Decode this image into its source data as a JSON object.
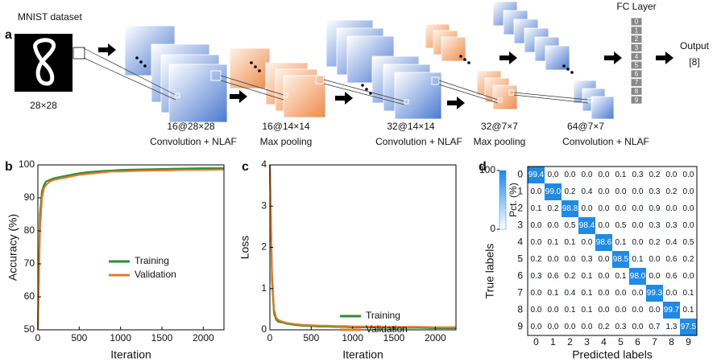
{
  "panel_labels": [
    "a",
    "b",
    "c",
    "d"
  ],
  "diagram": {
    "input_title": "MNIST dataset",
    "input_size": "28×28",
    "layers": [
      {
        "size": "16@28×28",
        "op": "Convolution + NLAF"
      },
      {
        "size": "16@14×14",
        "op": "Max pooling"
      },
      {
        "size": "32@14×14",
        "op": "Convolution + NLAF"
      },
      {
        "size": "32@7×7",
        "op": "Max pooling"
      },
      {
        "size": "64@7×7",
        "op": "Convolution + NLAF"
      }
    ],
    "fc_title": "FC Layer",
    "fc_nodes": [
      "0",
      "1",
      "2",
      "3",
      "4",
      "5",
      "6",
      "7",
      "8",
      "9"
    ],
    "output_title": "Output",
    "output_value": "[8]"
  },
  "chart_data": [
    {
      "type": "line",
      "xlabel": "Iteration",
      "ylabel": "Accuracy (%)",
      "x": [
        0,
        25,
        50,
        75,
        100,
        150,
        200,
        300,
        400,
        500,
        600,
        700,
        800,
        900,
        1000,
        1200,
        1400,
        1600,
        1800,
        2000,
        2250
      ],
      "series": [
        {
          "name": "Training",
          "color": "#2e8b3a",
          "values": [
            50,
            85,
            92,
            94,
            95,
            95.5,
            96,
            96.5,
            97,
            97.5,
            97.8,
            98,
            98.2,
            98.3,
            98.5,
            98.6,
            98.7,
            98.8,
            98.9,
            99,
            99
          ]
        },
        {
          "name": "Validation",
          "color": "#e07b2a",
          "values": [
            50,
            80,
            90,
            93,
            94,
            95,
            95.5,
            96,
            96.5,
            97,
            97.3,
            97.5,
            97.8,
            98,
            98,
            98.2,
            98.3,
            98.4,
            98.5,
            98.5,
            98.6
          ]
        }
      ],
      "xlim": [
        0,
        2250
      ],
      "xticks": [
        0,
        500,
        1000,
        1500,
        2000
      ],
      "ylim": [
        50,
        100
      ],
      "yticks": [
        50,
        60,
        70,
        80,
        90,
        100
      ]
    },
    {
      "type": "line",
      "xlabel": "Iteration",
      "ylabel": "Loss",
      "x": [
        0,
        25,
        50,
        75,
        100,
        150,
        200,
        300,
        400,
        500,
        600,
        700,
        800,
        900,
        1000,
        1200,
        1400,
        1600,
        1800,
        2000,
        2250
      ],
      "series": [
        {
          "name": "Training",
          "color": "#2e8b3a",
          "values": [
            4,
            1.2,
            0.4,
            0.25,
            0.2,
            0.18,
            0.15,
            0.12,
            0.1,
            0.09,
            0.08,
            0.08,
            0.07,
            0.07,
            0.06,
            0.06,
            0.05,
            0.05,
            0.05,
            0.04,
            0.04
          ]
        },
        {
          "name": "Validation",
          "color": "#e07b2a",
          "values": [
            4,
            1.4,
            0.5,
            0.3,
            0.24,
            0.2,
            0.17,
            0.14,
            0.12,
            0.11,
            0.1,
            0.1,
            0.09,
            0.09,
            0.08,
            0.08,
            0.07,
            0.07,
            0.07,
            0.06,
            0.06
          ]
        }
      ],
      "xlim": [
        0,
        2250
      ],
      "xticks": [
        0,
        500,
        1000,
        1500,
        2000
      ],
      "ylim": [
        0,
        4
      ],
      "yticks": [
        0,
        1,
        2,
        3,
        4
      ]
    },
    {
      "type": "heatmap",
      "xlabel": "Predicted labels",
      "ylabel": "True labels",
      "colorbar_label": "Pct. (%)",
      "clim": [
        0,
        100
      ],
      "cticks": [
        0,
        100
      ],
      "color": "#1e88e5",
      "categories": [
        "0",
        "1",
        "2",
        "3",
        "4",
        "5",
        "6",
        "7",
        "8",
        "9"
      ],
      "values": [
        [
          99.4,
          0,
          0,
          0,
          0,
          0.1,
          0.3,
          0.2,
          0,
          0
        ],
        [
          0,
          99.0,
          0.2,
          0.4,
          0,
          0,
          0,
          0.3,
          0.2,
          0
        ],
        [
          0.1,
          0.2,
          98.8,
          0,
          0,
          0,
          0,
          0.9,
          0,
          0
        ],
        [
          0,
          0,
          0.5,
          98.4,
          0,
          0.5,
          0,
          0.3,
          0.3,
          0
        ],
        [
          0,
          0.1,
          0.1,
          0,
          98.6,
          0.1,
          0,
          0.2,
          0.4,
          0.5
        ],
        [
          0.2,
          0,
          0,
          0.3,
          0,
          98.5,
          0.1,
          0,
          0.6,
          0.2
        ],
        [
          0.3,
          0.6,
          0.2,
          0.1,
          0,
          0.1,
          98.0,
          0,
          0.6,
          0
        ],
        [
          0,
          0.1,
          0.4,
          0.1,
          0,
          0,
          0,
          99.3,
          0,
          0.1
        ],
        [
          0,
          0,
          0.1,
          0.1,
          0,
          0,
          0,
          0,
          99.7,
          0.1
        ],
        [
          0,
          0,
          0,
          0,
          0.2,
          0.3,
          0,
          0.7,
          1.3,
          97.5
        ]
      ],
      "value_labels": [
        [
          "99.4",
          "0.0",
          "0.0",
          "0.0",
          "0.0",
          "0.1",
          "0.3",
          "0.2",
          "0.0",
          "0.0"
        ],
        [
          "0.0",
          "99.0",
          "0.2",
          "0.4",
          "0.0",
          "0.0",
          "0.0",
          "0.3",
          "0.2",
          "0.0"
        ],
        [
          "0.1",
          "0.2",
          "98.8",
          "0.0",
          "0.0",
          "0.0",
          "0.0",
          "0.9",
          "0.0",
          "0.0"
        ],
        [
          "0.0",
          "0.0",
          "0.5",
          "98.4",
          "0.0",
          "0.5",
          "0.0",
          "0.3",
          "0.3",
          "0.0"
        ],
        [
          "0.0",
          "0.1",
          "0.1",
          "0.0",
          "98.6",
          "0.1",
          "0.0",
          "0.2",
          "0.4",
          "0.5"
        ],
        [
          "0.2",
          "0.0",
          "0.0",
          "0.3",
          "0.0",
          "98.5",
          "0.1",
          "0.0",
          "0.6",
          "0.2"
        ],
        [
          "0.3",
          "0.6",
          "0.2",
          "0.1",
          "0.0",
          "0.1",
          "98.0",
          "0.0",
          "0.6",
          "0.0"
        ],
        [
          "0.0",
          "0.1",
          "0.4",
          "0.1",
          "0.0",
          "0.0",
          "0.0",
          "99.3",
          "0.0",
          "0.1"
        ],
        [
          "0.0",
          "0.0",
          "0.1",
          "0.1",
          "0.0",
          "0.0",
          "0.0",
          "0.0",
          "99.7",
          "0.1"
        ],
        [
          "0.0",
          "0.0",
          "0.0",
          "0.0",
          "0.2",
          "0.3",
          "0.0",
          "0.7",
          "1.3",
          "97.5"
        ]
      ]
    }
  ]
}
